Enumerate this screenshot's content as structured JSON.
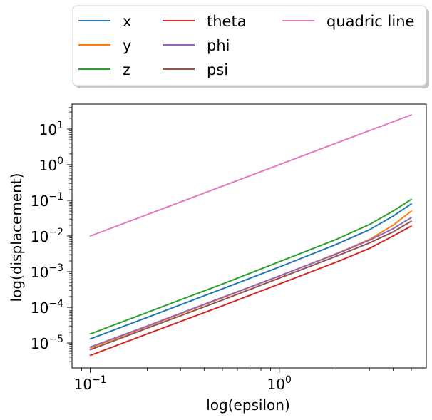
{
  "chart_data": {
    "type": "line",
    "xscale": "log",
    "yscale": "log",
    "xlabel": "log(epsilon)",
    "ylabel": "log(displacement)",
    "xlim": [
      0.08,
      6.0
    ],
    "ylim": [
      2e-06,
      50
    ],
    "grid": false,
    "legend": {
      "placement": "top, outside, 3 columns"
    },
    "x_ticks": [
      {
        "value": 0.1,
        "label": "10^-1"
      },
      {
        "value": 1,
        "label": "10^0"
      }
    ],
    "y_ticks": [
      {
        "value": 1e-05,
        "label": "10^-5"
      },
      {
        "value": 0.0001,
        "label": "10^-4"
      },
      {
        "value": 0.001,
        "label": "10^-3"
      },
      {
        "value": 0.01,
        "label": "10^-2"
      },
      {
        "value": 0.1,
        "label": "10^-1"
      },
      {
        "value": 1,
        "label": "10^0"
      },
      {
        "value": 10,
        "label": "10^1"
      }
    ],
    "x": [
      0.1,
      0.2,
      0.5,
      1.0,
      2.0,
      3.0,
      4.0,
      5.0
    ],
    "series": [
      {
        "name": "x",
        "color": "#1f77b4",
        "values": [
          1.3e-05,
          5.2e-05,
          0.00033,
          0.00135,
          0.0058,
          0.015,
          0.036,
          0.08
        ]
      },
      {
        "name": "y",
        "color": "#ff7f0e",
        "values": [
          7.3e-06,
          2.9e-05,
          0.000185,
          0.00075,
          0.0032,
          0.008,
          0.02,
          0.05
        ]
      },
      {
        "name": "z",
        "color": "#2ca02c",
        "values": [
          1.8e-05,
          7.2e-05,
          0.00045,
          0.0019,
          0.008,
          0.021,
          0.05,
          0.107
        ]
      },
      {
        "name": "theta",
        "color": "#d62728",
        "values": [
          4.5e-06,
          1.8e-05,
          0.00011,
          0.00045,
          0.00185,
          0.0045,
          0.01,
          0.019
        ]
      },
      {
        "name": "phi",
        "color": "#9467bd",
        "values": [
          7.7e-06,
          3e-05,
          0.00019,
          0.00076,
          0.0031,
          0.0076,
          0.016,
          0.033
        ]
      },
      {
        "name": "psi",
        "color": "#8c564b",
        "values": [
          6.5e-06,
          2.6e-05,
          0.00016,
          0.00066,
          0.0027,
          0.0064,
          0.013,
          0.026
        ]
      },
      {
        "name": "quadric line",
        "color": "#e377c2",
        "values": [
          0.01,
          0.04,
          0.25,
          1.0,
          4.0,
          9.0,
          16.0,
          25.0
        ]
      }
    ]
  }
}
